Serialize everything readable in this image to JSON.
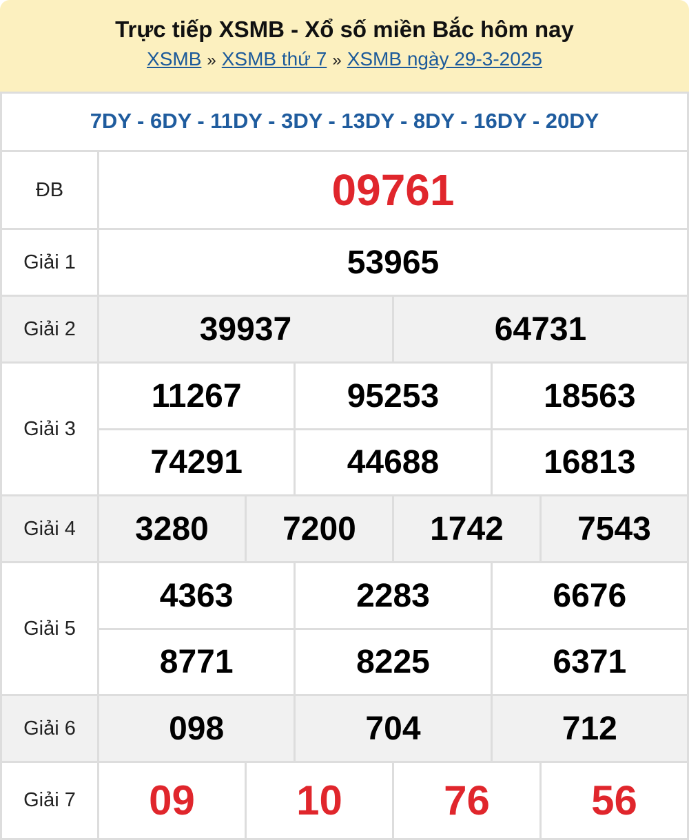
{
  "header": {
    "title": "Trực tiếp XSMB - Xổ số miền Bắc hôm nay",
    "breadcrumb": [
      "XSMB",
      "XSMB thứ 7",
      "XSMB ngày 29-3-2025"
    ],
    "separator": "»"
  },
  "codes": "7DY - 6DY - 11DY - 3DY - 13DY - 8DY - 16DY - 20DY",
  "prizes": {
    "db": {
      "label": "ĐB",
      "values": [
        "09761"
      ]
    },
    "g1": {
      "label": "Giải 1",
      "values": [
        "53965"
      ]
    },
    "g2": {
      "label": "Giải 2",
      "values": [
        "39937",
        "64731"
      ]
    },
    "g3": {
      "label": "Giải 3",
      "values": [
        "11267",
        "95253",
        "18563",
        "74291",
        "44688",
        "16813"
      ]
    },
    "g4": {
      "label": "Giải 4",
      "values": [
        "3280",
        "7200",
        "1742",
        "7543"
      ]
    },
    "g5": {
      "label": "Giải 5",
      "values": [
        "4363",
        "2283",
        "6676",
        "8771",
        "8225",
        "6371"
      ]
    },
    "g6": {
      "label": "Giải 6",
      "values": [
        "098",
        "704",
        "712"
      ]
    },
    "g7": {
      "label": "Giải 7",
      "values": [
        "09",
        "10",
        "76",
        "56"
      ]
    }
  },
  "colors": {
    "highlight": "#e0262c",
    "link": "#1c5a9a",
    "header_bg": "#fcf0bf"
  }
}
